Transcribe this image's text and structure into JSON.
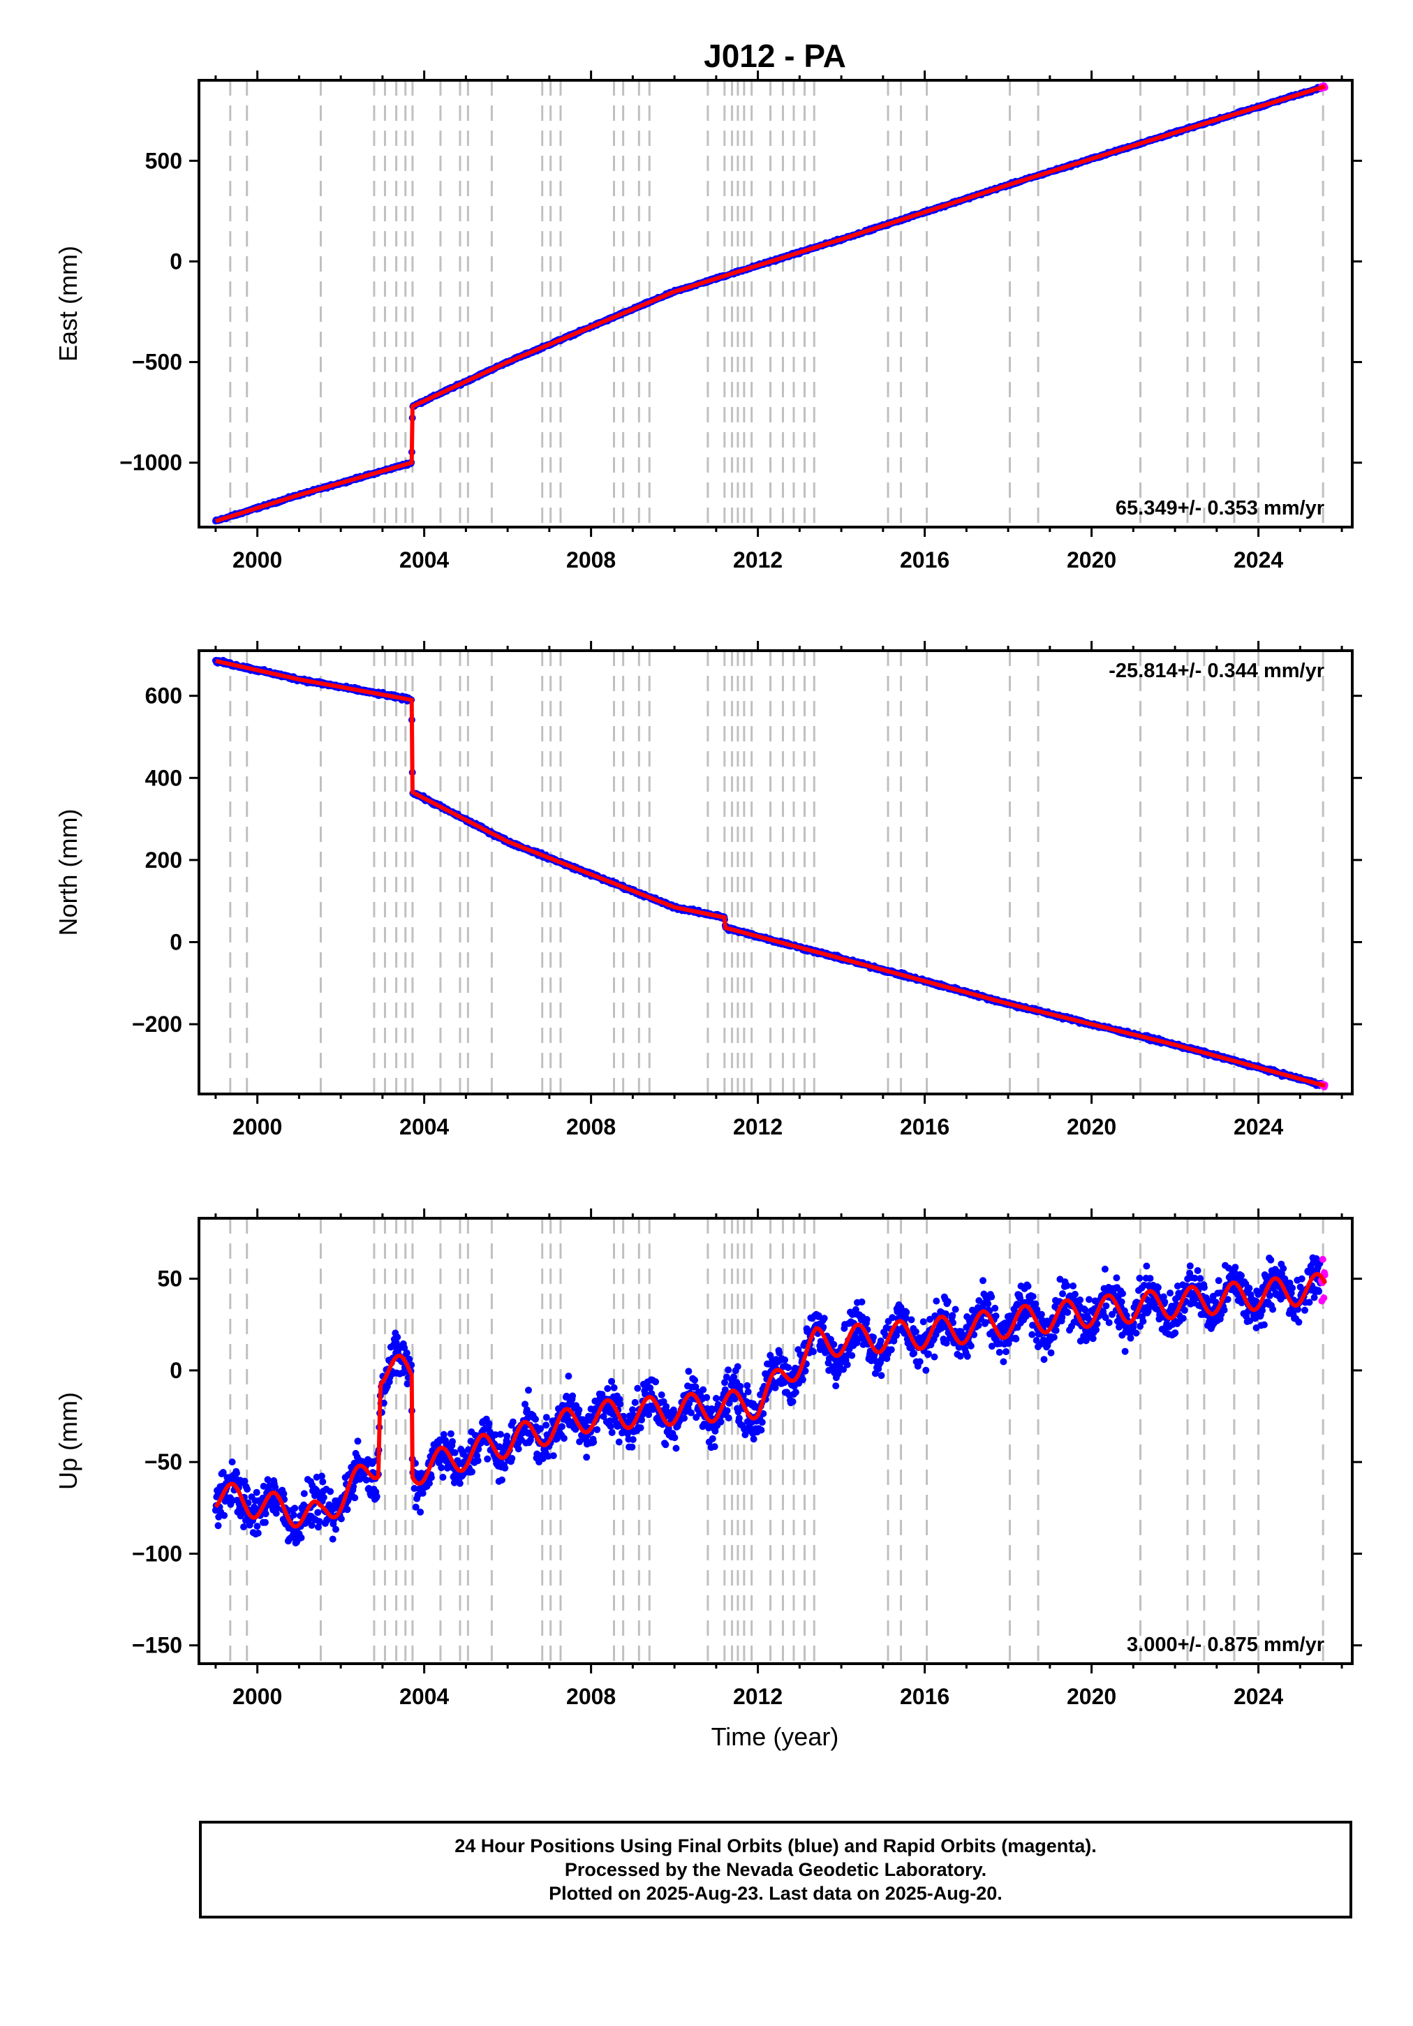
{
  "title": "J012 - PA",
  "xlabel": "Time (year)",
  "footer": {
    "line1": "24 Hour Positions Using Final Orbits (blue) and Rapid Orbits (magenta).",
    "line2": "Processed by the Nevada Geodetic Laboratory.",
    "line3": "Plotted on 2025-Aug-23. Last data on 2025-Aug-20."
  },
  "colors": {
    "final_orbits": "#0000ff",
    "rapid_orbits": "#ff00ff",
    "model": "#ff0000",
    "event_lines": "#c0c0c0"
  },
  "chart_data": [
    {
      "type": "scatter",
      "name": "east",
      "ylabel": "East (mm)",
      "rate_label": "65.349+/- 0.353 mm/yr",
      "xlim": [
        1998.6,
        2026.25
      ],
      "ylim": [
        -1320,
        900
      ],
      "x_ticks": [
        2000,
        2004,
        2008,
        2012,
        2016,
        2020,
        2024
      ],
      "y_ticks": [
        500,
        0,
        -500,
        -1000
      ],
      "legend": "none",
      "grid": false,
      "events": [
        {
          "x": 1999.7,
          "label": "2000"
        },
        {
          "x": 2003.72,
          "label": "2004"
        }
      ],
      "series": [
        {
          "name": "",
          "x": [
            1999.0,
            2001.0,
            2003.7,
            2003.72,
            2006.0,
            2010.0,
            2014.0,
            2018.0,
            2022.0,
            2025.6
          ],
          "values": [
            -1290,
            -1160,
            -1000,
            -720,
            -500,
            -150,
            110,
            380,
            640,
            870
          ]
        }
      ]
    },
    {
      "type": "scatter",
      "name": "north",
      "ylabel": "North (mm)",
      "rate_label": "-25.814+/- 0.344 mm/yr",
      "xlim": [
        1998.6,
        2026.25
      ],
      "ylim": [
        -370,
        710
      ],
      "x_ticks": [
        2000,
        2004,
        2008,
        2012,
        2016,
        2020,
        2024
      ],
      "y_ticks": [
        600,
        400,
        200,
        0,
        -200
      ],
      "legend": "none",
      "grid": false,
      "series": [
        {
          "name": "",
          "x": [
            1999.0,
            2001.0,
            2003.7,
            2003.72,
            2006.0,
            2010.0,
            2011.2,
            2011.22,
            2014.0,
            2018.0,
            2022.0,
            2025.6
          ],
          "values": [
            685,
            640,
            590,
            365,
            245,
            85,
            60,
            35,
            -40,
            -150,
            -250,
            -350
          ]
        }
      ]
    },
    {
      "type": "scatter",
      "name": "up",
      "ylabel": "Up (mm)",
      "rate_label": "3.000+/- 0.875 mm/yr",
      "xlim": [
        1998.6,
        2026.25
      ],
      "ylim": [
        -160,
        83
      ],
      "x_ticks": [
        2000,
        2004,
        2008,
        2012,
        2016,
        2020,
        2024
      ],
      "y_ticks": [
        50,
        0,
        -50,
        -100,
        -150
      ],
      "legend": "none",
      "grid": false,
      "series": [
        {
          "name": "",
          "x": [
            1999.0,
            2001.5,
            2002.9,
            2002.95,
            2003.7,
            2003.72,
            2008.0,
            2012.0,
            2013.4,
            2016.0,
            2020.0,
            2025.6
          ],
          "values": [
            -68,
            -80,
            -50,
            0,
            0,
            -55,
            -25,
            -18,
            15,
            20,
            32,
            45
          ]
        }
      ]
    }
  ]
}
